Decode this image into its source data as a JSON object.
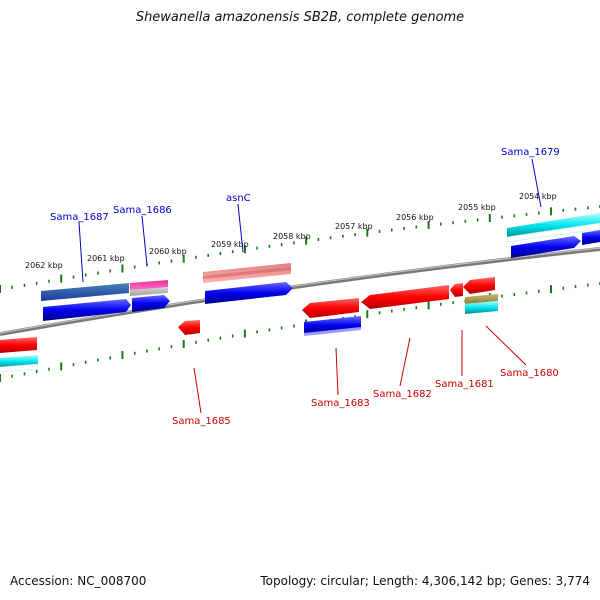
{
  "title": "Shewanella amazonensis SB2B, complete genome",
  "footer": {
    "accession": "Accession: NC_008700",
    "summary": "Topology: circular; Length: 4,306,142 bp; Genes: 3,774"
  },
  "scale_labels": [
    "2062 kbp",
    "2061 kbp",
    "2060 kbp",
    "2059 kbp",
    "2058 kbp",
    "2057 kbp",
    "2056 kbp",
    "2055 kbp",
    "2054 kbp"
  ],
  "gene_labels": {
    "top": [
      "Sama_1687",
      "Sama_1686",
      "asnC",
      "Sama_1679"
    ],
    "bottom": [
      "Sama_1685",
      "Sama_1683",
      "Sama_1682",
      "Sama_1681",
      "Sama_1680"
    ]
  },
  "colors": {
    "cds": "#ff0000",
    "gene": "#0000ee",
    "rna": "#00e5ee",
    "misc": "#ee2d9c",
    "tick": "#1a7a1a",
    "backbone": "#888888",
    "top_label": "#0000cc",
    "bottom_label": "#cc0000"
  }
}
